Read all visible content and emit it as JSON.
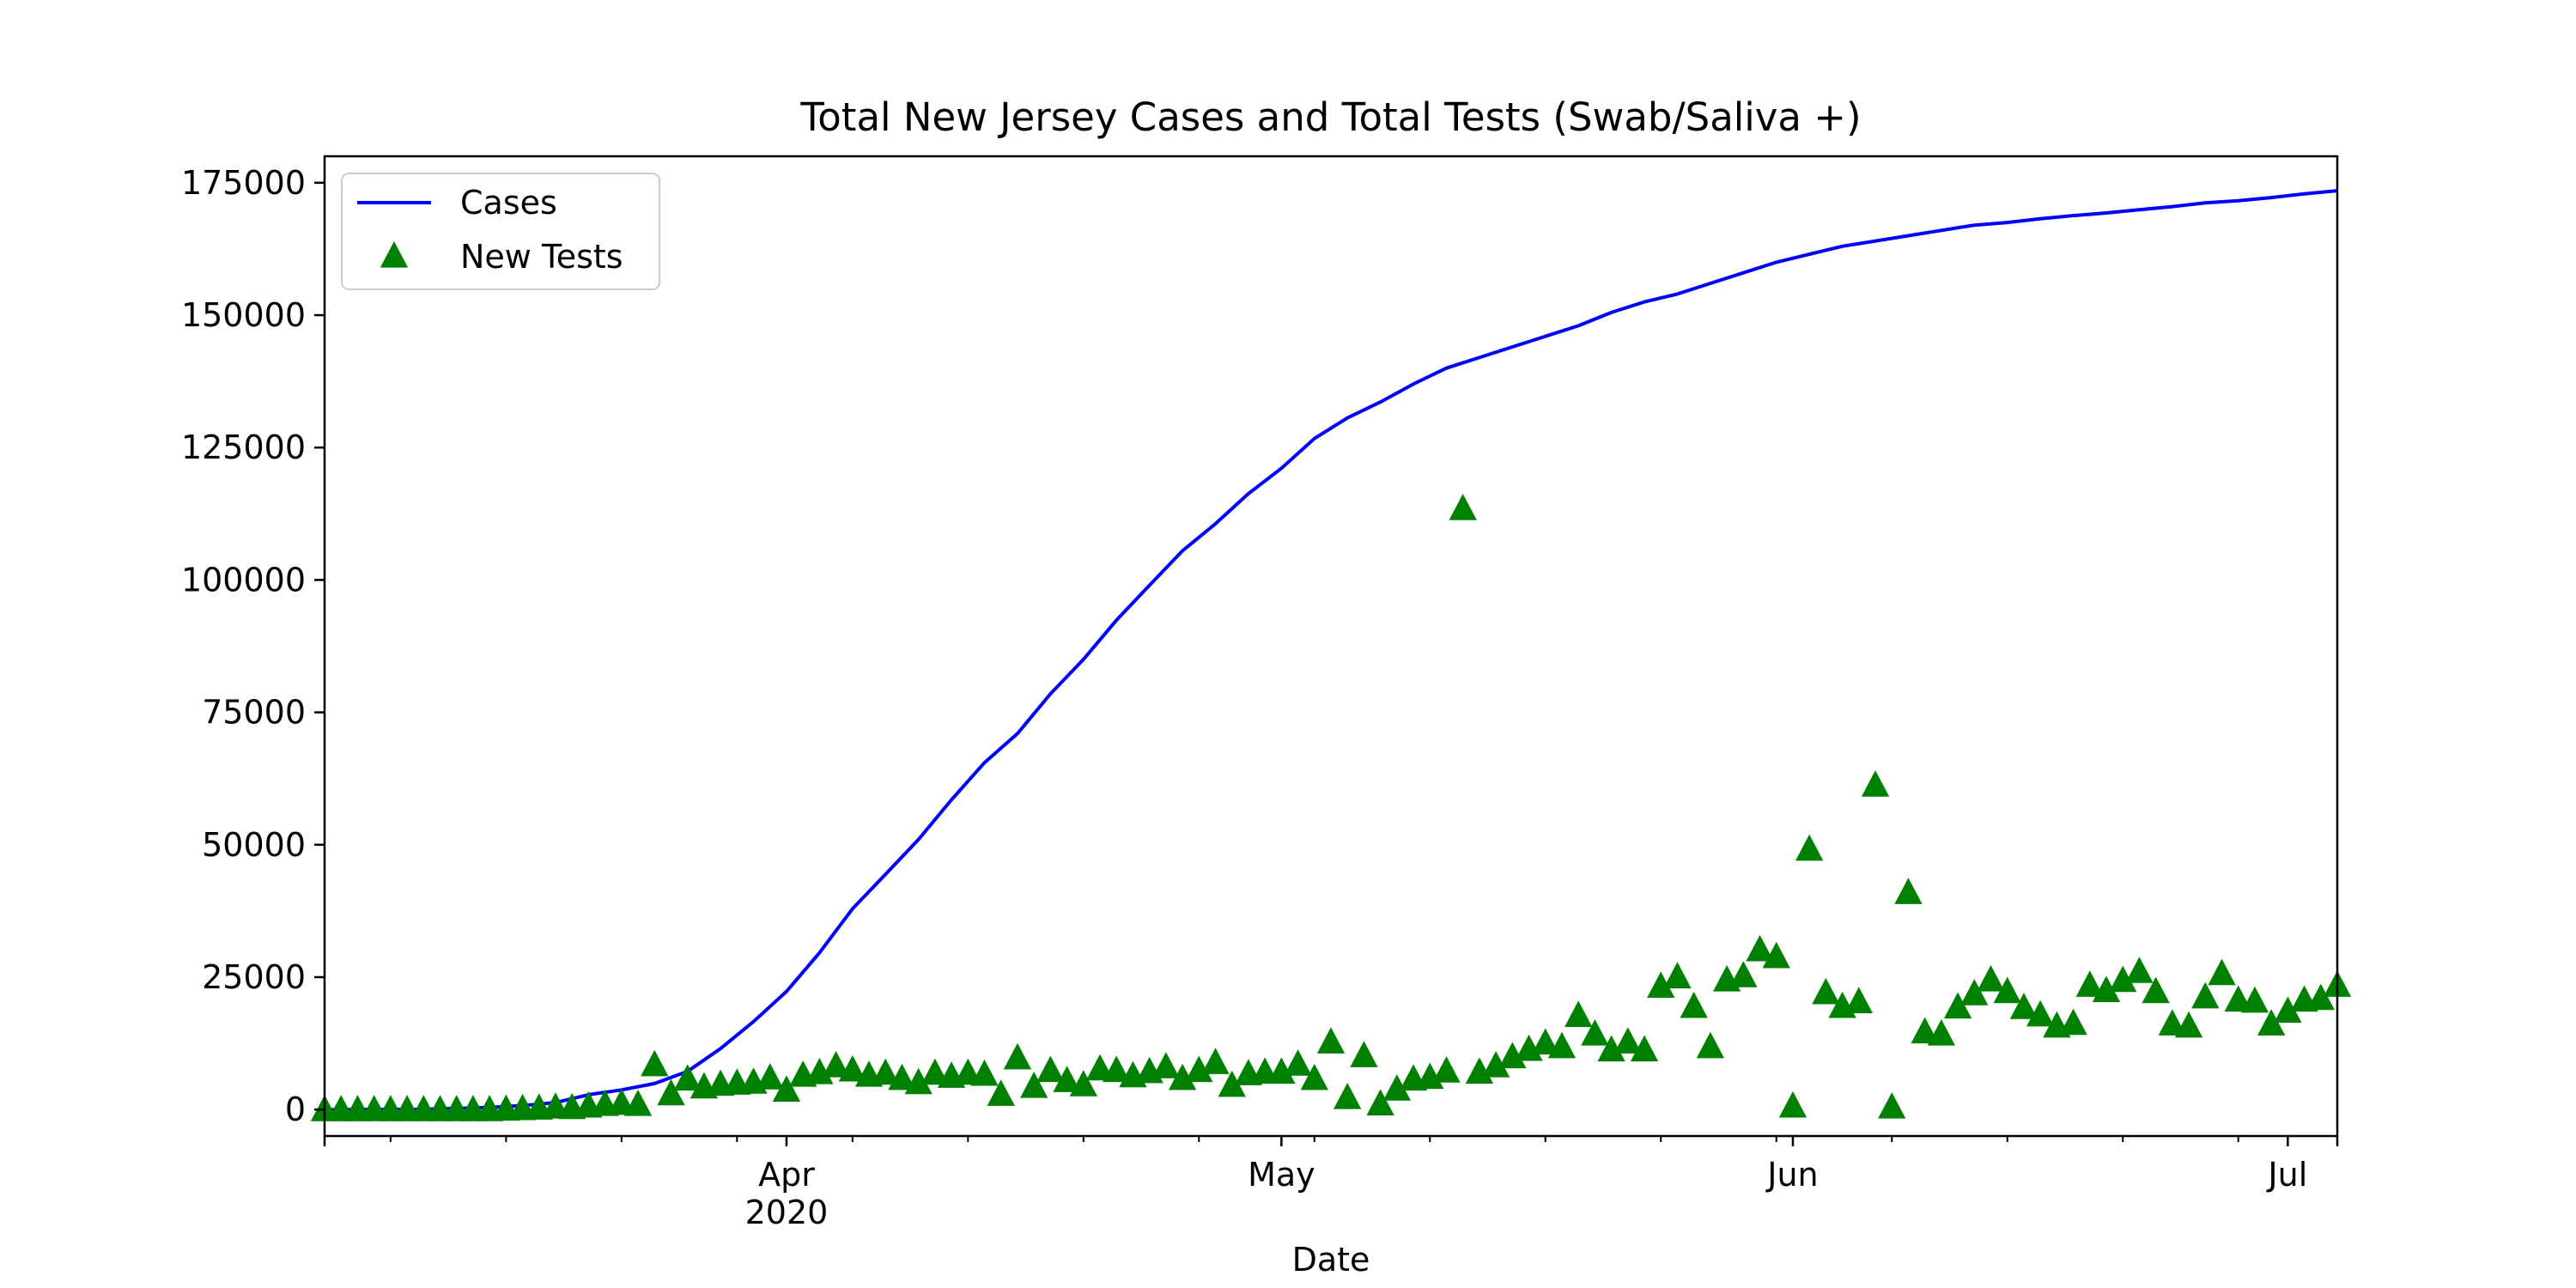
{
  "chart_data": {
    "type": "line+scatter",
    "title": "Total New Jersey Cases and Total Tests (Swab/Saliva +)",
    "xlabel": "Date",
    "ylabel": "",
    "x_start": "2020-03-04",
    "x_end": "2020-07-04",
    "xlim": [
      "2020-03-04",
      "2020-07-04"
    ],
    "ylim": [
      -5000,
      180000
    ],
    "yticks": [
      {
        "value": 0,
        "label": "0"
      },
      {
        "value": 25000,
        "label": "25000"
      },
      {
        "value": 50000,
        "label": "50000"
      },
      {
        "value": 75000,
        "label": "75000"
      },
      {
        "value": 100000,
        "label": "100000"
      },
      {
        "value": 125000,
        "label": "125000"
      },
      {
        "value": 150000,
        "label": "150000"
      },
      {
        "value": 175000,
        "label": "175000"
      }
    ],
    "xticks_major": [
      {
        "date": "2020-04-01",
        "label": "Apr",
        "label2": "2020"
      },
      {
        "date": "2020-05-01",
        "label": "May",
        "label2": ""
      },
      {
        "date": "2020-06-01",
        "label": "Jun",
        "label2": ""
      },
      {
        "date": "2020-07-01",
        "label": "Jul",
        "label2": ""
      }
    ],
    "xticks_minor": [
      "2020-03-08",
      "2020-03-15",
      "2020-03-22",
      "2020-03-29",
      "2020-04-05",
      "2020-04-12",
      "2020-04-19",
      "2020-04-26",
      "2020-05-03",
      "2020-05-10",
      "2020-05-17",
      "2020-05-24",
      "2020-05-31",
      "2020-06-07",
      "2020-06-14",
      "2020-06-21",
      "2020-06-28"
    ],
    "grid": false,
    "legend_position": "top-left",
    "series": [
      {
        "name": "Cases",
        "type": "line",
        "color": "#0000ff",
        "x": [
          "2020-03-04",
          "2020-03-10",
          "2020-03-14",
          "2020-03-16",
          "2020-03-18",
          "2020-03-20",
          "2020-03-22",
          "2020-03-24",
          "2020-03-26",
          "2020-03-28",
          "2020-03-30",
          "2020-04-01",
          "2020-04-03",
          "2020-04-05",
          "2020-04-07",
          "2020-04-09",
          "2020-04-11",
          "2020-04-13",
          "2020-04-15",
          "2020-04-17",
          "2020-04-19",
          "2020-04-21",
          "2020-04-23",
          "2020-04-25",
          "2020-04-27",
          "2020-04-29",
          "2020-05-01",
          "2020-05-03",
          "2020-05-05",
          "2020-05-07",
          "2020-05-09",
          "2020-05-11",
          "2020-05-13",
          "2020-05-15",
          "2020-05-17",
          "2020-05-19",
          "2020-05-21",
          "2020-05-23",
          "2020-05-25",
          "2020-05-27",
          "2020-05-29",
          "2020-05-31",
          "2020-06-02",
          "2020-06-04",
          "2020-06-06",
          "2020-06-08",
          "2020-06-10",
          "2020-06-12",
          "2020-06-14",
          "2020-06-16",
          "2020-06-18",
          "2020-06-20",
          "2020-06-22",
          "2020-06-24",
          "2020-06-26",
          "2020-06-28",
          "2020-06-30",
          "2020-07-02",
          "2020-07-04"
        ],
        "y": [
          0,
          50,
          400,
          750,
          1300,
          2800,
          3700,
          4900,
          7200,
          11500,
          16600,
          22300,
          29600,
          37900,
          44400,
          51000,
          58500,
          65500,
          71000,
          78500,
          85000,
          92400,
          99000,
          105500,
          110600,
          116300,
          121100,
          126700,
          130600,
          133600,
          137000,
          140000,
          142000,
          144000,
          146000,
          148000,
          150500,
          152500,
          154000,
          156000,
          158000,
          160000,
          161500,
          163000,
          164000,
          165000,
          166000,
          167000,
          167500,
          168200,
          168800,
          169300,
          169900,
          170500,
          171200,
          171600,
          172200,
          172900,
          173500
        ]
      },
      {
        "name": "New Tests",
        "type": "scatter",
        "marker": "triangle",
        "color": "#008000",
        "x": [
          "2020-03-04",
          "2020-03-05",
          "2020-03-06",
          "2020-03-07",
          "2020-03-08",
          "2020-03-09",
          "2020-03-10",
          "2020-03-11",
          "2020-03-12",
          "2020-03-13",
          "2020-03-14",
          "2020-03-15",
          "2020-03-16",
          "2020-03-17",
          "2020-03-18",
          "2020-03-19",
          "2020-03-20",
          "2020-03-21",
          "2020-03-22",
          "2020-03-23",
          "2020-03-24",
          "2020-03-25",
          "2020-03-26",
          "2020-03-27",
          "2020-03-28",
          "2020-03-29",
          "2020-03-30",
          "2020-03-31",
          "2020-04-01",
          "2020-04-02",
          "2020-04-03",
          "2020-04-04",
          "2020-04-05",
          "2020-04-06",
          "2020-04-07",
          "2020-04-08",
          "2020-04-09",
          "2020-04-10",
          "2020-04-11",
          "2020-04-12",
          "2020-04-13",
          "2020-04-14",
          "2020-04-15",
          "2020-04-16",
          "2020-04-17",
          "2020-04-18",
          "2020-04-19",
          "2020-04-20",
          "2020-04-21",
          "2020-04-22",
          "2020-04-23",
          "2020-04-24",
          "2020-04-25",
          "2020-04-26",
          "2020-04-27",
          "2020-04-28",
          "2020-04-29",
          "2020-04-30",
          "2020-05-01",
          "2020-05-02",
          "2020-05-03",
          "2020-05-04",
          "2020-05-05",
          "2020-05-06",
          "2020-05-07",
          "2020-05-08",
          "2020-05-09",
          "2020-05-10",
          "2020-05-11",
          "2020-05-12",
          "2020-05-13",
          "2020-05-14",
          "2020-05-15",
          "2020-05-16",
          "2020-05-17",
          "2020-05-18",
          "2020-05-19",
          "2020-05-20",
          "2020-05-21",
          "2020-05-22",
          "2020-05-23",
          "2020-05-24",
          "2020-05-25",
          "2020-05-26",
          "2020-05-27",
          "2020-05-28",
          "2020-05-29",
          "2020-05-30",
          "2020-05-31",
          "2020-06-01",
          "2020-06-02",
          "2020-06-03",
          "2020-06-04",
          "2020-06-05",
          "2020-06-06",
          "2020-06-07",
          "2020-06-08",
          "2020-06-09",
          "2020-06-10",
          "2020-06-11",
          "2020-06-12",
          "2020-06-13",
          "2020-06-14",
          "2020-06-15",
          "2020-06-16",
          "2020-06-17",
          "2020-06-18",
          "2020-06-19",
          "2020-06-20",
          "2020-06-21",
          "2020-06-22",
          "2020-06-23",
          "2020-06-24",
          "2020-06-25",
          "2020-06-26",
          "2020-06-27",
          "2020-06-28",
          "2020-06-29",
          "2020-06-30",
          "2020-07-01",
          "2020-07-02",
          "2020-07-03",
          "2020-07-04"
        ],
        "y": [
          0,
          0,
          0,
          0,
          0,
          0,
          0,
          0,
          0,
          0,
          0,
          100,
          200,
          300,
          500,
          400,
          700,
          1000,
          1200,
          1000,
          8500,
          3000,
          5800,
          4300,
          4800,
          5000,
          5200,
          6000,
          3700,
          6500,
          7000,
          8300,
          7500,
          6500,
          6900,
          5900,
          5100,
          6900,
          6300,
          6900,
          6700,
          2900,
          9800,
          4400,
          7400,
          5500,
          4700,
          7700,
          7400,
          6400,
          7200,
          8100,
          5900,
          7400,
          8900,
          4600,
          6800,
          7100,
          7100,
          8600,
          5900,
          12800,
          2300,
          10200,
          1100,
          3900,
          5800,
          6100,
          7300,
          113500,
          7100,
          8300,
          10000,
          11400,
          12600,
          11900,
          17800,
          14300,
          11300,
          12800,
          11300,
          23300,
          25100,
          19500,
          11900,
          24500,
          25300,
          30200,
          28900,
          700,
          49200,
          22100,
          19500,
          20400,
          61300,
          500,
          41000,
          14700,
          14300,
          19400,
          21900,
          24500,
          22300,
          19300,
          17900,
          15800,
          16300,
          23500,
          22500,
          24400,
          26100,
          22300,
          16200,
          15800,
          21300,
          25700,
          20700,
          20500,
          16200,
          18600,
          20700,
          21000,
          23500
        ]
      }
    ]
  }
}
